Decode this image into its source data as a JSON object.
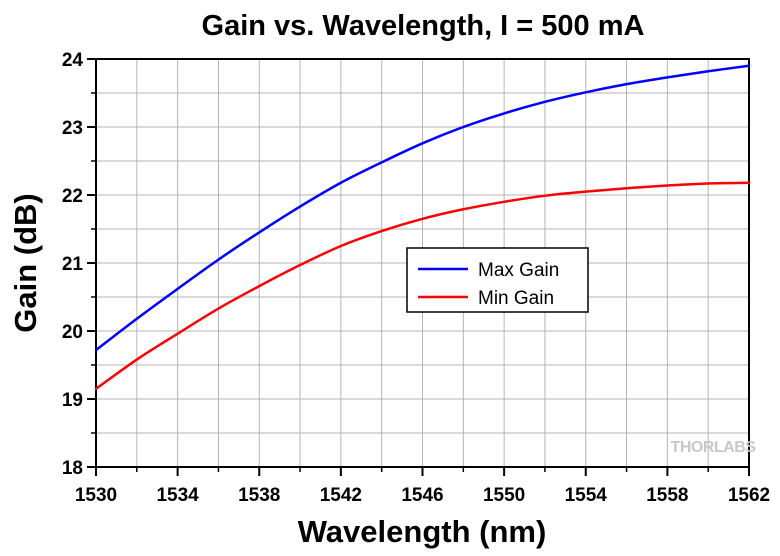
{
  "chart_data": {
    "type": "line",
    "title": "Gain vs. Wavelength, I = 500 mA",
    "xlabel": "Wavelength (nm)",
    "ylabel": "Gain (dB)",
    "xlim": [
      1530,
      1562
    ],
    "ylim": [
      18,
      24
    ],
    "xticks": [
      1530,
      1534,
      1538,
      1542,
      1546,
      1550,
      1554,
      1558,
      1562
    ],
    "yticks": [
      18,
      19,
      20,
      21,
      22,
      23,
      24
    ],
    "grid": true,
    "legend_position": "center-right",
    "watermark": "THORLABS",
    "series": [
      {
        "name": "Max Gain",
        "color": "#0000ff",
        "x": [
          1530,
          1532,
          1534,
          1536,
          1538,
          1540,
          1542,
          1544,
          1546,
          1548,
          1550,
          1552,
          1554,
          1556,
          1558,
          1560,
          1562
        ],
        "y": [
          19.72,
          20.18,
          20.62,
          21.05,
          21.45,
          21.83,
          22.18,
          22.48,
          22.76,
          23.0,
          23.2,
          23.37,
          23.51,
          23.63,
          23.73,
          23.82,
          23.9
        ]
      },
      {
        "name": "Min Gain",
        "color": "#ff0000",
        "x": [
          1530,
          1532,
          1534,
          1536,
          1538,
          1540,
          1542,
          1544,
          1546,
          1548,
          1550,
          1552,
          1554,
          1556,
          1558,
          1560,
          1562
        ],
        "y": [
          19.15,
          19.58,
          19.96,
          20.33,
          20.66,
          20.97,
          21.25,
          21.47,
          21.65,
          21.79,
          21.9,
          21.99,
          22.05,
          22.1,
          22.14,
          22.17,
          22.18
        ]
      }
    ]
  }
}
